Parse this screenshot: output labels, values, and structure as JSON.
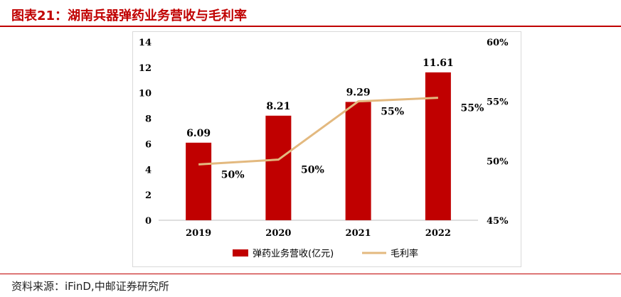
{
  "header": {
    "title": "图表21：湖南兵器弹药业务营收与毛利率"
  },
  "footer": {
    "source": "资料来源：iFinD,中邮证券研究所"
  },
  "colors": {
    "accent": "#c00000",
    "bar": "#c00000",
    "line": "#e3b97f"
  },
  "chart_data": {
    "type": "bar",
    "categories": [
      "2019",
      "2020",
      "2021",
      "2022"
    ],
    "series": [
      {
        "name": "弹药业务营收(亿元)",
        "type": "bar",
        "axis": "left",
        "values": [
          6.09,
          8.21,
          9.29,
          11.61
        ],
        "labels": [
          "6.09",
          "8.21",
          "9.29",
          "11.61"
        ]
      },
      {
        "name": "毛利率",
        "type": "line",
        "axis": "right",
        "values": [
          49.7,
          50.1,
          55.0,
          55.3
        ],
        "labels": [
          "50%",
          "50%",
          "55%",
          "55%"
        ]
      }
    ],
    "y_left": {
      "min": 0,
      "max": 14,
      "step": 2,
      "ticks": [
        "0",
        "2",
        "4",
        "6",
        "8",
        "10",
        "12",
        "14"
      ]
    },
    "y_right": {
      "min": 45,
      "max": 60,
      "step": 5,
      "ticks": [
        "45%",
        "50%",
        "55%",
        "60%"
      ]
    },
    "legend": {
      "position": "bottom"
    },
    "grid": false
  }
}
